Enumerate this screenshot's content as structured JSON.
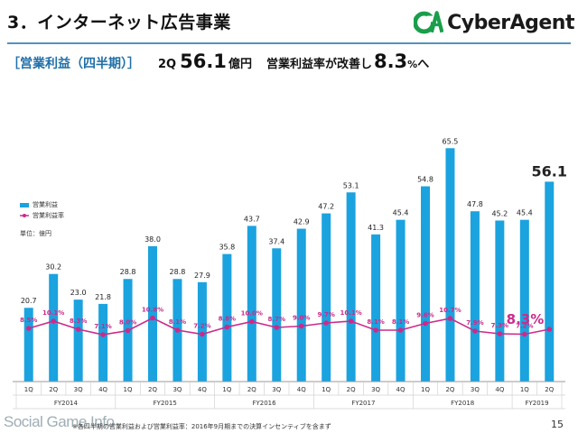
{
  "header": {
    "title": "3．インターネット広告事業",
    "brand": "CyberAgent"
  },
  "subhead": {
    "bracket_label": "［営業利益（四半期）］",
    "quarter": "2Q",
    "profit_value": "56.1",
    "profit_unit": "億円",
    "margin_label": "営業利益率が改善し",
    "margin_value": "8.3",
    "margin_unit": "%",
    "margin_suffix": "へ"
  },
  "legend": {
    "bar": "営業利益",
    "line": "営業利益率"
  },
  "unit_label": "単位：億円",
  "footnote": "※各四半期の営業利益および営業利益率：2016年9月期までの決算インセンティブを含まず",
  "page_number": "15",
  "watermark": "Social Game Info",
  "colors": {
    "bar": "#1aa3df",
    "line": "#cc2a8a",
    "highlight_label": "#cc2a8a"
  },
  "chart_data": {
    "type": "bar",
    "categories": [
      "1Q",
      "2Q",
      "3Q",
      "4Q",
      "1Q",
      "2Q",
      "3Q",
      "4Q",
      "1Q",
      "2Q",
      "3Q",
      "4Q",
      "1Q",
      "2Q",
      "3Q",
      "4Q",
      "1Q",
      "2Q",
      "3Q",
      "4Q",
      "1Q",
      "2Q"
    ],
    "fiscal_years": [
      {
        "label": "FY2014",
        "count": 4
      },
      {
        "label": "FY2015",
        "count": 4
      },
      {
        "label": "FY2016",
        "count": 4
      },
      {
        "label": "FY2017",
        "count": 4
      },
      {
        "label": "FY2018",
        "count": 4
      },
      {
        "label": "FY2019",
        "count": 2
      }
    ],
    "series": [
      {
        "name": "営業利益",
        "type": "bar",
        "values": [
          20.7,
          30.2,
          23.0,
          21.8,
          28.8,
          38.0,
          28.8,
          27.9,
          35.8,
          43.7,
          37.4,
          42.9,
          47.2,
          53.1,
          41.3,
          45.4,
          54.8,
          65.5,
          47.8,
          45.2,
          45.4,
          56.1
        ],
        "labels": [
          "20.7",
          "30.2",
          "23.0",
          "21.8",
          "28.8",
          "38.0",
          "28.8",
          "27.9",
          "35.8",
          "43.7",
          "37.4",
          "42.9",
          "47.2",
          "53.1",
          "41.3",
          "45.4",
          "54.8",
          "65.5",
          "47.8",
          "45.2",
          "45.4",
          "56.1"
        ]
      },
      {
        "name": "営業利益率",
        "type": "line",
        "values": [
          8.5,
          10.1,
          8.3,
          7.1,
          8.0,
          10.8,
          8.1,
          7.2,
          8.8,
          10.0,
          8.7,
          9.0,
          9.7,
          10.1,
          8.1,
          8.1,
          9.6,
          10.7,
          7.9,
          7.3,
          7.2,
          8.3
        ],
        "labels": [
          "8.5%",
          "10.1%",
          "8.3%",
          "7.1%",
          "8.0%",
          "10.8%",
          "8.1%",
          "7.2%",
          "8.8%",
          "10.0%",
          "8.7%",
          "9.0%",
          "9.7%",
          "10.1%",
          "8.1%",
          "8.1%",
          "9.6%",
          "10.7%",
          "7.9%",
          "7.3%",
          "7.2%",
          "8.3%"
        ]
      }
    ],
    "highlight_index": 21,
    "ylim": [
      0,
      70
    ],
    "grid": false,
    "legend_position": "left"
  }
}
